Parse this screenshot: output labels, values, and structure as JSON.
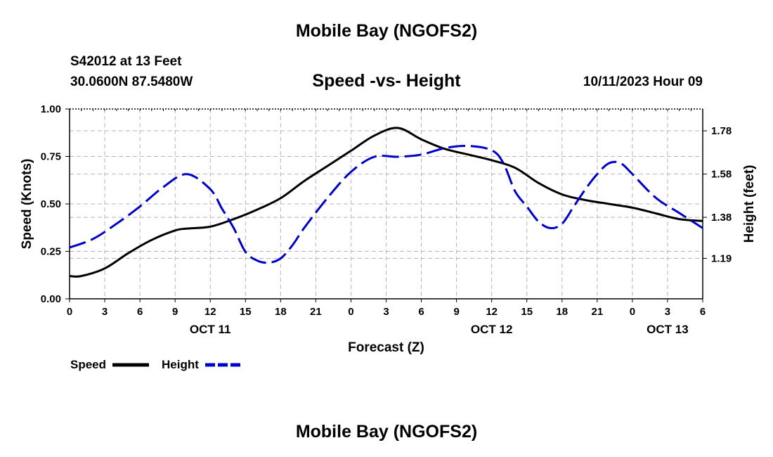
{
  "header": {
    "title": "Mobile Bay (NGOFS2)",
    "station": "S42012 at 13 Feet",
    "coords": "30.0600N  87.5480W",
    "subtitle": "Speed -vs- Height",
    "datetime": "10/11/2023 Hour 09"
  },
  "footer": {
    "title": "Mobile Bay (NGOFS2)"
  },
  "legend": {
    "speed_label": "Speed",
    "height_label": "Height"
  },
  "chart_data": {
    "type": "line",
    "xlabel": "Forecast (Z)",
    "ylabel": "Speed (Knots)",
    "y2label": "Height (feet)",
    "x_ticks": [
      "0",
      "3",
      "6",
      "9",
      "12",
      "15",
      "18",
      "21",
      "0",
      "3",
      "6",
      "9",
      "12",
      "15",
      "18",
      "21",
      "0",
      "3",
      "6"
    ],
    "x_day_labels": [
      {
        "hour_index": 12,
        "label": "OCT 11"
      },
      {
        "hour_index": 36,
        "label": "OCT 12"
      },
      {
        "hour_index": 51,
        "label": "OCT 13"
      }
    ],
    "xlim": [
      0,
      54
    ],
    "ylim": [
      0,
      1.0
    ],
    "y_ticks": [
      "0.00",
      "0.25",
      "0.50",
      "0.75",
      "1.00"
    ],
    "y2lim": [
      1.003,
      1.881
    ],
    "y2_ticks": [
      "1.19",
      "1.38",
      "1.58",
      "1.78"
    ],
    "grid": true,
    "series": [
      {
        "name": "Speed",
        "color": "#000000",
        "dash": "solid",
        "axis": "left",
        "x": [
          0,
          1,
          3,
          5,
          7,
          9,
          10,
          12,
          14,
          16,
          18,
          20,
          22,
          24,
          26,
          28,
          30,
          32,
          34,
          36,
          38,
          40,
          42,
          44,
          46,
          48,
          50,
          52,
          54
        ],
        "values": [
          0.12,
          0.12,
          0.16,
          0.24,
          0.31,
          0.36,
          0.37,
          0.38,
          0.42,
          0.47,
          0.53,
          0.62,
          0.7,
          0.78,
          0.86,
          0.9,
          0.84,
          0.79,
          0.76,
          0.73,
          0.69,
          0.61,
          0.55,
          0.52,
          0.5,
          0.48,
          0.45,
          0.42,
          0.41
        ]
      },
      {
        "name": "Height",
        "color": "#0000cc",
        "dash": "dashed",
        "axis": "right",
        "x": [
          0,
          2,
          4,
          6,
          8,
          10,
          12,
          13,
          14,
          15,
          16,
          17,
          18,
          19,
          20,
          22,
          24,
          26,
          28,
          30,
          32,
          34,
          36,
          37,
          38,
          39,
          40,
          41,
          42,
          43,
          44,
          45,
          46,
          47,
          48,
          50,
          52,
          54
        ],
        "values": [
          1.24,
          1.28,
          1.35,
          1.43,
          1.52,
          1.58,
          1.51,
          1.42,
          1.33,
          1.22,
          1.18,
          1.17,
          1.19,
          1.25,
          1.33,
          1.47,
          1.59,
          1.66,
          1.66,
          1.67,
          1.7,
          1.71,
          1.69,
          1.63,
          1.5,
          1.43,
          1.36,
          1.33,
          1.35,
          1.43,
          1.51,
          1.58,
          1.63,
          1.63,
          1.58,
          1.47,
          1.4,
          1.33
        ]
      }
    ]
  }
}
